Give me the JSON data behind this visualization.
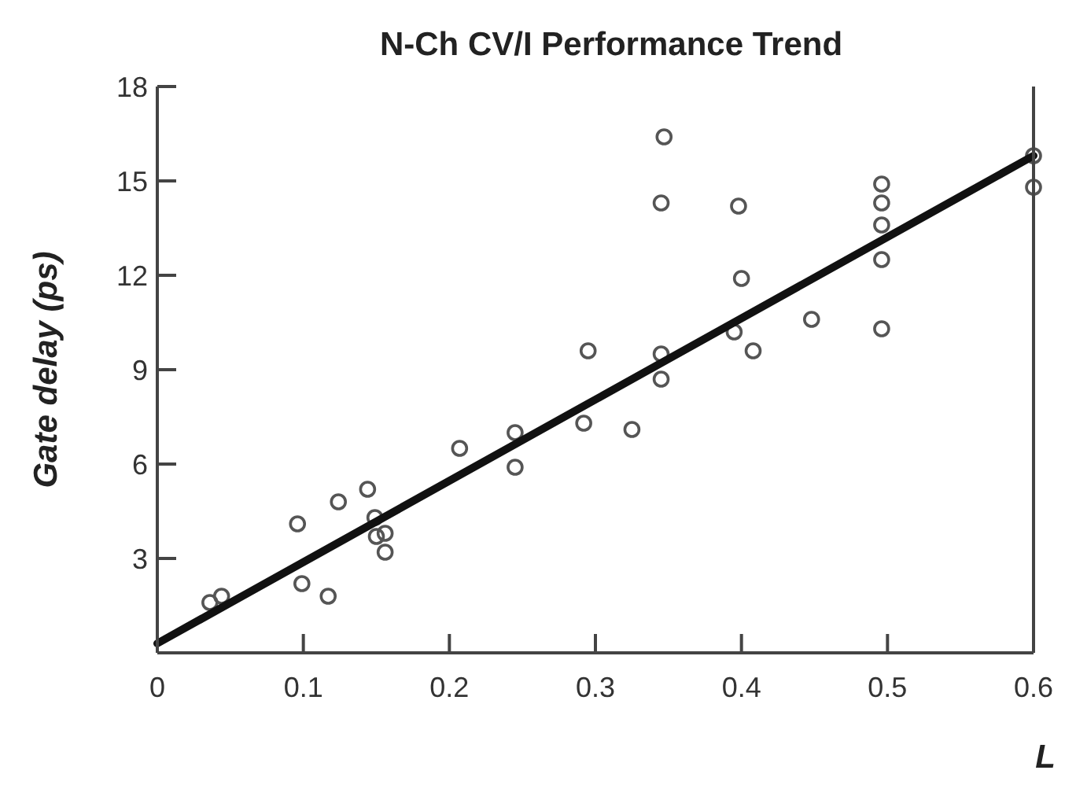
{
  "chart_data": {
    "type": "scatter",
    "title": "N-Ch CV/I Performance Trend",
    "xlabel": "L",
    "ylabel": "Gate delay (ps)",
    "xlim": [
      0,
      0.6
    ],
    "ylim": [
      0,
      18
    ],
    "xticks": [
      0,
      0.1,
      0.2,
      0.3,
      0.4,
      0.5,
      0.6
    ],
    "yticks": [
      3,
      6,
      9,
      12,
      15,
      18
    ],
    "grid": false,
    "series": [
      {
        "marker": "circle",
        "color": "#555555",
        "x": [
          0.036,
          0.044,
          0.096,
          0.099,
          0.117,
          0.124,
          0.144,
          0.149,
          0.15,
          0.156,
          0.156,
          0.207,
          0.245,
          0.245,
          0.292,
          0.295,
          0.325,
          0.345,
          0.345,
          0.345,
          0.347,
          0.398,
          0.4,
          0.395,
          0.408,
          0.448,
          0.496,
          0.496,
          0.496,
          0.496,
          0.496,
          0.6,
          0.6
        ],
        "values": [
          1.6,
          1.8,
          4.1,
          2.2,
          1.8,
          4.8,
          5.2,
          4.3,
          3.7,
          3.8,
          3.2,
          6.5,
          7,
          5.9,
          7.3,
          9.6,
          7.1,
          9.5,
          8.7,
          14.3,
          16.4,
          14.2,
          11.9,
          10.2,
          9.6,
          10.6,
          14.9,
          14.3,
          13.6,
          12.5,
          10.3,
          15.8,
          14.8
        ]
      },
      {
        "type": "line",
        "marker": "none",
        "line_style": "solid",
        "color": "#111111",
        "x": [
          0,
          0.6
        ],
        "values": [
          0.3,
          15.8
        ]
      }
    ]
  }
}
